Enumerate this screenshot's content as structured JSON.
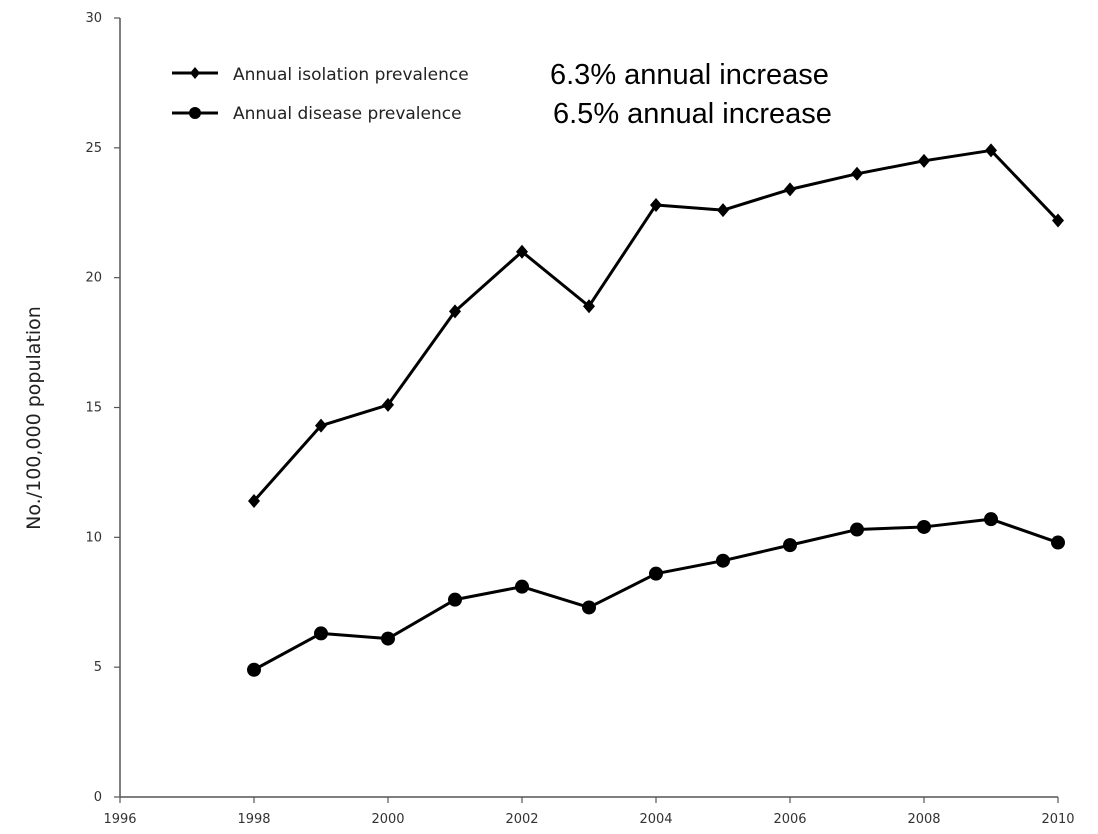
{
  "chart_data": {
    "type": "line",
    "title": "",
    "xlabel": "",
    "ylabel": "No./100,000 population",
    "xlim": [
      1996,
      2010
    ],
    "ylim": [
      0,
      30
    ],
    "x_ticks": [
      "1996",
      "1998",
      "2000",
      "2002",
      "2004",
      "2006",
      "2008",
      "2010"
    ],
    "y_ticks": [
      "0",
      "5",
      "10",
      "15",
      "20",
      "25",
      "30"
    ],
    "grid": false,
    "legend_position": "top-left",
    "x": [
      1998,
      1999,
      2000,
      2001,
      2002,
      2003,
      2004,
      2005,
      2006,
      2007,
      2008,
      2009,
      2010
    ],
    "series": [
      {
        "name": "Annual isolation prevalence",
        "marker": "diamond",
        "annotation": "6.3% annual increase",
        "values": [
          11.4,
          14.3,
          15.1,
          18.7,
          21.0,
          18.9,
          22.8,
          22.6,
          23.4,
          24.0,
          24.5,
          24.9,
          22.2
        ]
      },
      {
        "name": "Annual disease prevalence",
        "marker": "circle",
        "annotation": "6.5% annual increase",
        "values": [
          4.9,
          6.3,
          6.1,
          7.6,
          8.1,
          7.3,
          8.6,
          9.1,
          9.7,
          10.3,
          10.4,
          10.7,
          9.8
        ]
      }
    ],
    "colors": {
      "line": "#000000",
      "axis": "#555555"
    }
  }
}
